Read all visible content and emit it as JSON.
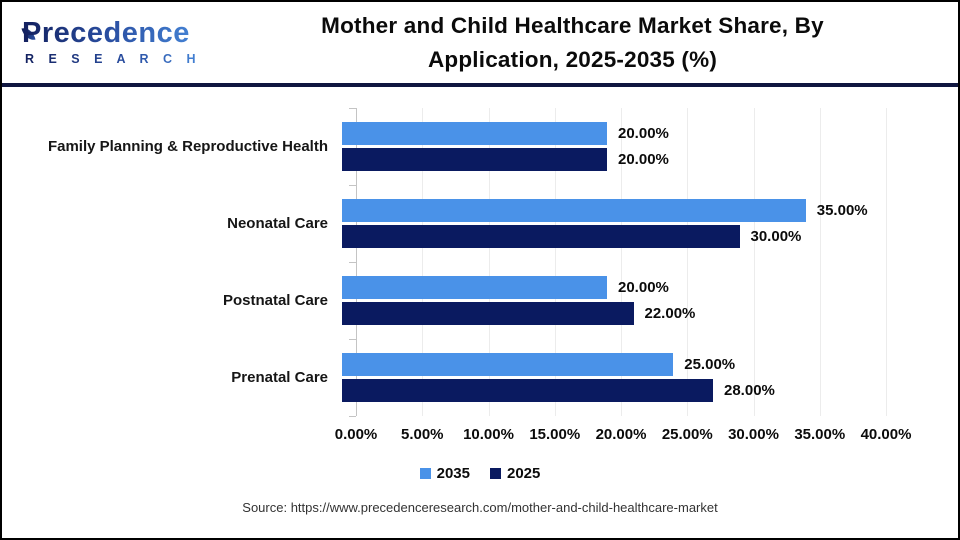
{
  "header": {
    "logo_brand": "Precedence",
    "logo_sub": "R E S E A R C H",
    "title_line1": "Mother and Child Healthcare Market Share, By",
    "title_line2": "Application, 2025-2035 (%)"
  },
  "chart_data": {
    "type": "bar",
    "orientation": "horizontal",
    "title": "Mother and Child Healthcare Market Share, By Application, 2025-2035 (%)",
    "categories": [
      "Family Planning & Reproductive Health",
      "Neonatal Care",
      "Postnatal Care",
      "Prenatal Care"
    ],
    "series": [
      {
        "name": "2035",
        "color": "#4a92e8",
        "values": [
          20,
          35,
          20,
          25
        ],
        "value_labels": [
          "20.00%",
          "35.00%",
          "20.00%",
          "25.00%"
        ]
      },
      {
        "name": "2025",
        "color": "#0a1a60",
        "values": [
          20,
          30,
          22,
          28
        ],
        "value_labels": [
          "20.00%",
          "30.00%",
          "22.00%",
          "28.00%"
        ]
      }
    ],
    "xlim": [
      0,
      40
    ],
    "x_ticks": [
      "0.00%",
      "5.00%",
      "10.00%",
      "15.00%",
      "20.00%",
      "25.00%",
      "30.00%",
      "35.00%",
      "40.00%"
    ],
    "grid": "vertical-light",
    "legend_position": "bottom"
  },
  "footer": {
    "source": "Source: https://www.precedenceresearch.com/mother-and-child-healthcare-market"
  }
}
